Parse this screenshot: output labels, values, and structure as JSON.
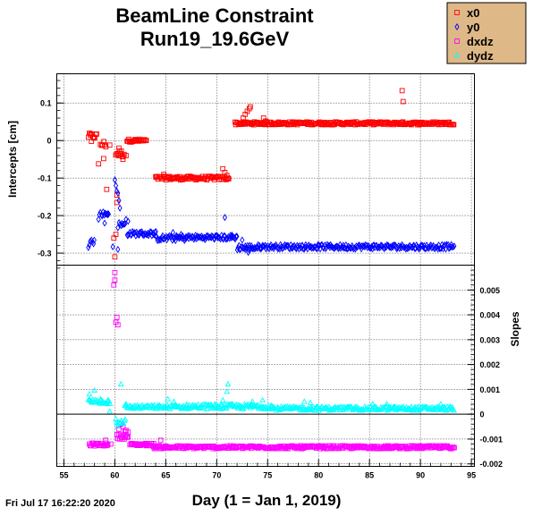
{
  "chart_data": {
    "type": "scatter",
    "title_line1": "BeamLine Constraint",
    "title_line2": "Run19_19.6GeV",
    "xlabel": "Day (1 = Jan 1, 2019)",
    "ylabel_top": "Intercepts [cm]",
    "ylabel_bottom": "Slopes",
    "timestamp": "Fri Jul 17 16:22:20 2020",
    "xlim": [
      54.3,
      95.3
    ],
    "xticks": [
      55,
      60,
      65,
      70,
      75,
      80,
      85,
      90,
      95
    ],
    "top_ylim": [
      -0.332,
      0.178
    ],
    "top_yticks": [
      {
        "v": 0.1,
        "label": "0.1"
      },
      {
        "v": 0.0,
        "label": "0"
      },
      {
        "v": -0.1,
        "label": "-0.1"
      },
      {
        "v": -0.2,
        "label": "-0.2"
      },
      {
        "v": -0.3,
        "label": "-0.3"
      }
    ],
    "bottom_ylim": [
      -0.0021,
      0.006
    ],
    "bottom_yticks": [
      {
        "v": 0.005,
        "label": "0.005"
      },
      {
        "v": 0.004,
        "label": "0.004"
      },
      {
        "v": 0.003,
        "label": "0.003"
      },
      {
        "v": 0.002,
        "label": "0.002"
      },
      {
        "v": 0.001,
        "label": "0.001"
      },
      {
        "v": 0.0,
        "label": "0"
      },
      {
        "v": -0.001,
        "label": "-0.001"
      },
      {
        "v": -0.002,
        "label": "-0.002"
      }
    ],
    "grid": true,
    "legend_position": "top-right",
    "series": [
      {
        "name": "x0",
        "panel": "top",
        "marker": "square",
        "color": "#ff0000",
        "segments": [
          [
            57.4,
            58.2,
            0.012,
            0.008
          ],
          [
            58.6,
            59.1,
            -0.01,
            0.01
          ],
          [
            60.1,
            60.9,
            -0.035,
            0.01
          ],
          [
            61.2,
            63.1,
            0.0,
            0.004
          ],
          [
            64.0,
            71.2,
            -0.1,
            0.005
          ],
          [
            71.8,
            93.3,
            0.046,
            0.004
          ]
        ],
        "points": [
          [
            57.7,
            -0.002
          ],
          [
            58.4,
            -0.062
          ],
          [
            58.9,
            -0.048
          ],
          [
            59.2,
            -0.13
          ],
          [
            59.5,
            -0.012
          ],
          [
            59.9,
            -0.26
          ],
          [
            60.0,
            -0.31
          ],
          [
            60.1,
            -0.25
          ],
          [
            60.2,
            -0.165
          ],
          [
            60.2,
            -0.145
          ],
          [
            60.4,
            -0.02
          ],
          [
            60.6,
            -0.035
          ],
          [
            60.8,
            -0.05
          ],
          [
            61.1,
            -0.04
          ],
          [
            64.8,
            -0.09
          ],
          [
            70.6,
            -0.075
          ],
          [
            70.8,
            -0.085
          ],
          [
            71.0,
            -0.093
          ],
          [
            72.6,
            0.06
          ],
          [
            72.8,
            0.07
          ],
          [
            73.0,
            0.078
          ],
          [
            73.2,
            0.085
          ],
          [
            73.3,
            0.09
          ],
          [
            74.6,
            0.06
          ],
          [
            74.8,
            0.052
          ],
          [
            88.2,
            0.133
          ],
          [
            88.3,
            0.104
          ]
        ]
      },
      {
        "name": "y0",
        "panel": "top",
        "marker": "diamond",
        "color": "#0000ff",
        "segments": [
          [
            57.6,
            58.0,
            -0.27,
            0.01
          ],
          [
            58.5,
            59.4,
            -0.195,
            0.006
          ],
          [
            60.3,
            61.0,
            -0.225,
            0.008
          ],
          [
            61.2,
            64.0,
            -0.248,
            0.006
          ],
          [
            64.0,
            67.0,
            -0.26,
            0.007
          ],
          [
            67.0,
            72.0,
            -0.258,
            0.006
          ],
          [
            72.0,
            74.0,
            -0.285,
            0.007
          ],
          [
            74.0,
            93.3,
            -0.283,
            0.006
          ]
        ],
        "points": [
          [
            57.4,
            -0.285
          ],
          [
            57.5,
            -0.278
          ],
          [
            58.4,
            -0.21
          ],
          [
            59.0,
            -0.22
          ],
          [
            59.3,
            -0.195
          ],
          [
            59.8,
            -0.283
          ],
          [
            60.0,
            -0.105
          ],
          [
            60.1,
            -0.12
          ],
          [
            60.2,
            -0.135
          ],
          [
            60.3,
            -0.14
          ],
          [
            60.4,
            -0.16
          ],
          [
            60.5,
            -0.18
          ],
          [
            60.3,
            -0.29
          ],
          [
            61.1,
            -0.21
          ],
          [
            61.3,
            -0.215
          ],
          [
            65.7,
            -0.245
          ],
          [
            66.1,
            -0.255
          ],
          [
            66.5,
            -0.25
          ],
          [
            70.8,
            -0.205
          ],
          [
            71.5,
            -0.252
          ],
          [
            72.5,
            -0.265
          ],
          [
            72.8,
            -0.29
          ],
          [
            73.1,
            -0.298
          ]
        ]
      },
      {
        "name": "dxdz",
        "panel": "bottom",
        "marker": "square",
        "color": "#ff00ff",
        "segments": [
          [
            57.5,
            59.3,
            -0.00122,
            6e-05
          ],
          [
            60.2,
            61.3,
            -0.0009,
            0.0001
          ],
          [
            61.5,
            63.8,
            -0.00122,
            5e-05
          ],
          [
            63.8,
            93.3,
            -0.00133,
            6e-05
          ]
        ],
        "points": [
          [
            59.1,
            -0.00105
          ],
          [
            59.6,
            -0.0012
          ],
          [
            59.9,
            0.0052
          ],
          [
            60.0,
            0.0054
          ],
          [
            60.0,
            0.0057
          ],
          [
            60.1,
            0.0037
          ],
          [
            60.2,
            0.0039
          ],
          [
            60.3,
            0.0036
          ],
          [
            60.4,
            -0.0006
          ],
          [
            60.6,
            -0.0004
          ],
          [
            60.8,
            -0.0005
          ],
          [
            61.0,
            -0.0007
          ],
          [
            61.1,
            -0.00065
          ],
          [
            61.3,
            -0.00072
          ],
          [
            64.5,
            -0.00105
          ]
        ]
      },
      {
        "name": "dydz",
        "panel": "bottom",
        "marker": "triangle",
        "color": "#00ffff",
        "segments": [
          [
            57.4,
            59.5,
            0.0005,
            0.0001
          ],
          [
            60.2,
            61.0,
            -0.0003,
            0.0001
          ],
          [
            61.0,
            67.0,
            0.00028,
            8e-05
          ],
          [
            67.0,
            75.5,
            0.0003,
            0.0001
          ],
          [
            75.5,
            93.3,
            0.00022,
            8e-05
          ]
        ],
        "points": [
          [
            57.5,
            0.0008
          ],
          [
            58.0,
            0.00095
          ],
          [
            58.6,
            0.0006
          ],
          [
            59.3,
            0.0004
          ],
          [
            59.5,
            0.0001
          ],
          [
            60.1,
            -0.0002
          ],
          [
            60.3,
            -0.0005
          ],
          [
            60.6,
            0.0012
          ],
          [
            61.1,
            0.0004
          ],
          [
            65.2,
            0.0006
          ],
          [
            65.8,
            0.0005
          ],
          [
            70.6,
            0.00055
          ],
          [
            71.0,
            0.0009
          ],
          [
            71.1,
            0.0012
          ],
          [
            73.5,
            0.0005
          ],
          [
            74.5,
            0.00055
          ],
          [
            78.6,
            0.0005
          ],
          [
            79.2,
            0.00045
          ],
          [
            85.3,
            0.0004
          ],
          [
            86.7,
            0.0004
          ],
          [
            92.0,
            0.0004
          ]
        ]
      }
    ]
  }
}
